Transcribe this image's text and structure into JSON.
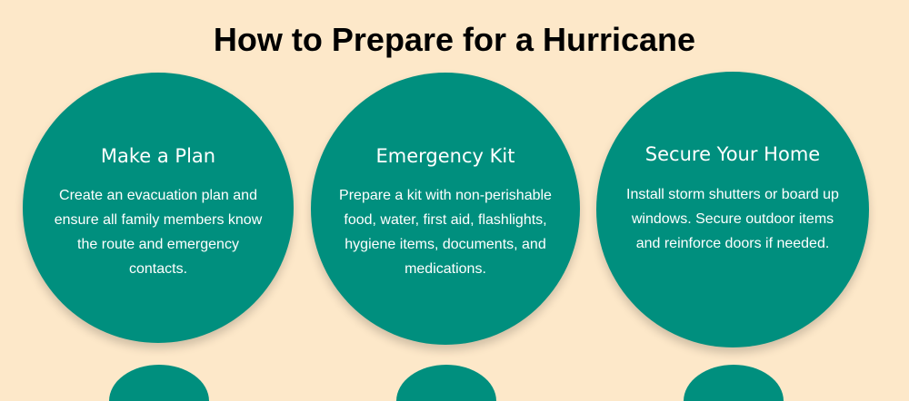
{
  "title": "How to Prepare for a Hurricane",
  "cards": [
    {
      "heading": "Make a Plan",
      "text": "Create an evacuation plan and ensure all family members know the route and emergency contacts."
    },
    {
      "heading": "Emergency Kit",
      "text": "Prepare a kit with non-perishable food, water, first aid, flashlights, hygiene items, documents, and medications."
    },
    {
      "heading": "Secure Your Home",
      "text": "Install storm shutters or board up windows. Secure outdoor items and reinforce doors if needed."
    }
  ],
  "colors": {
    "background": "#fde8c9",
    "circle": "#008f7e",
    "title": "#000000",
    "card_text": "#ffffff"
  }
}
